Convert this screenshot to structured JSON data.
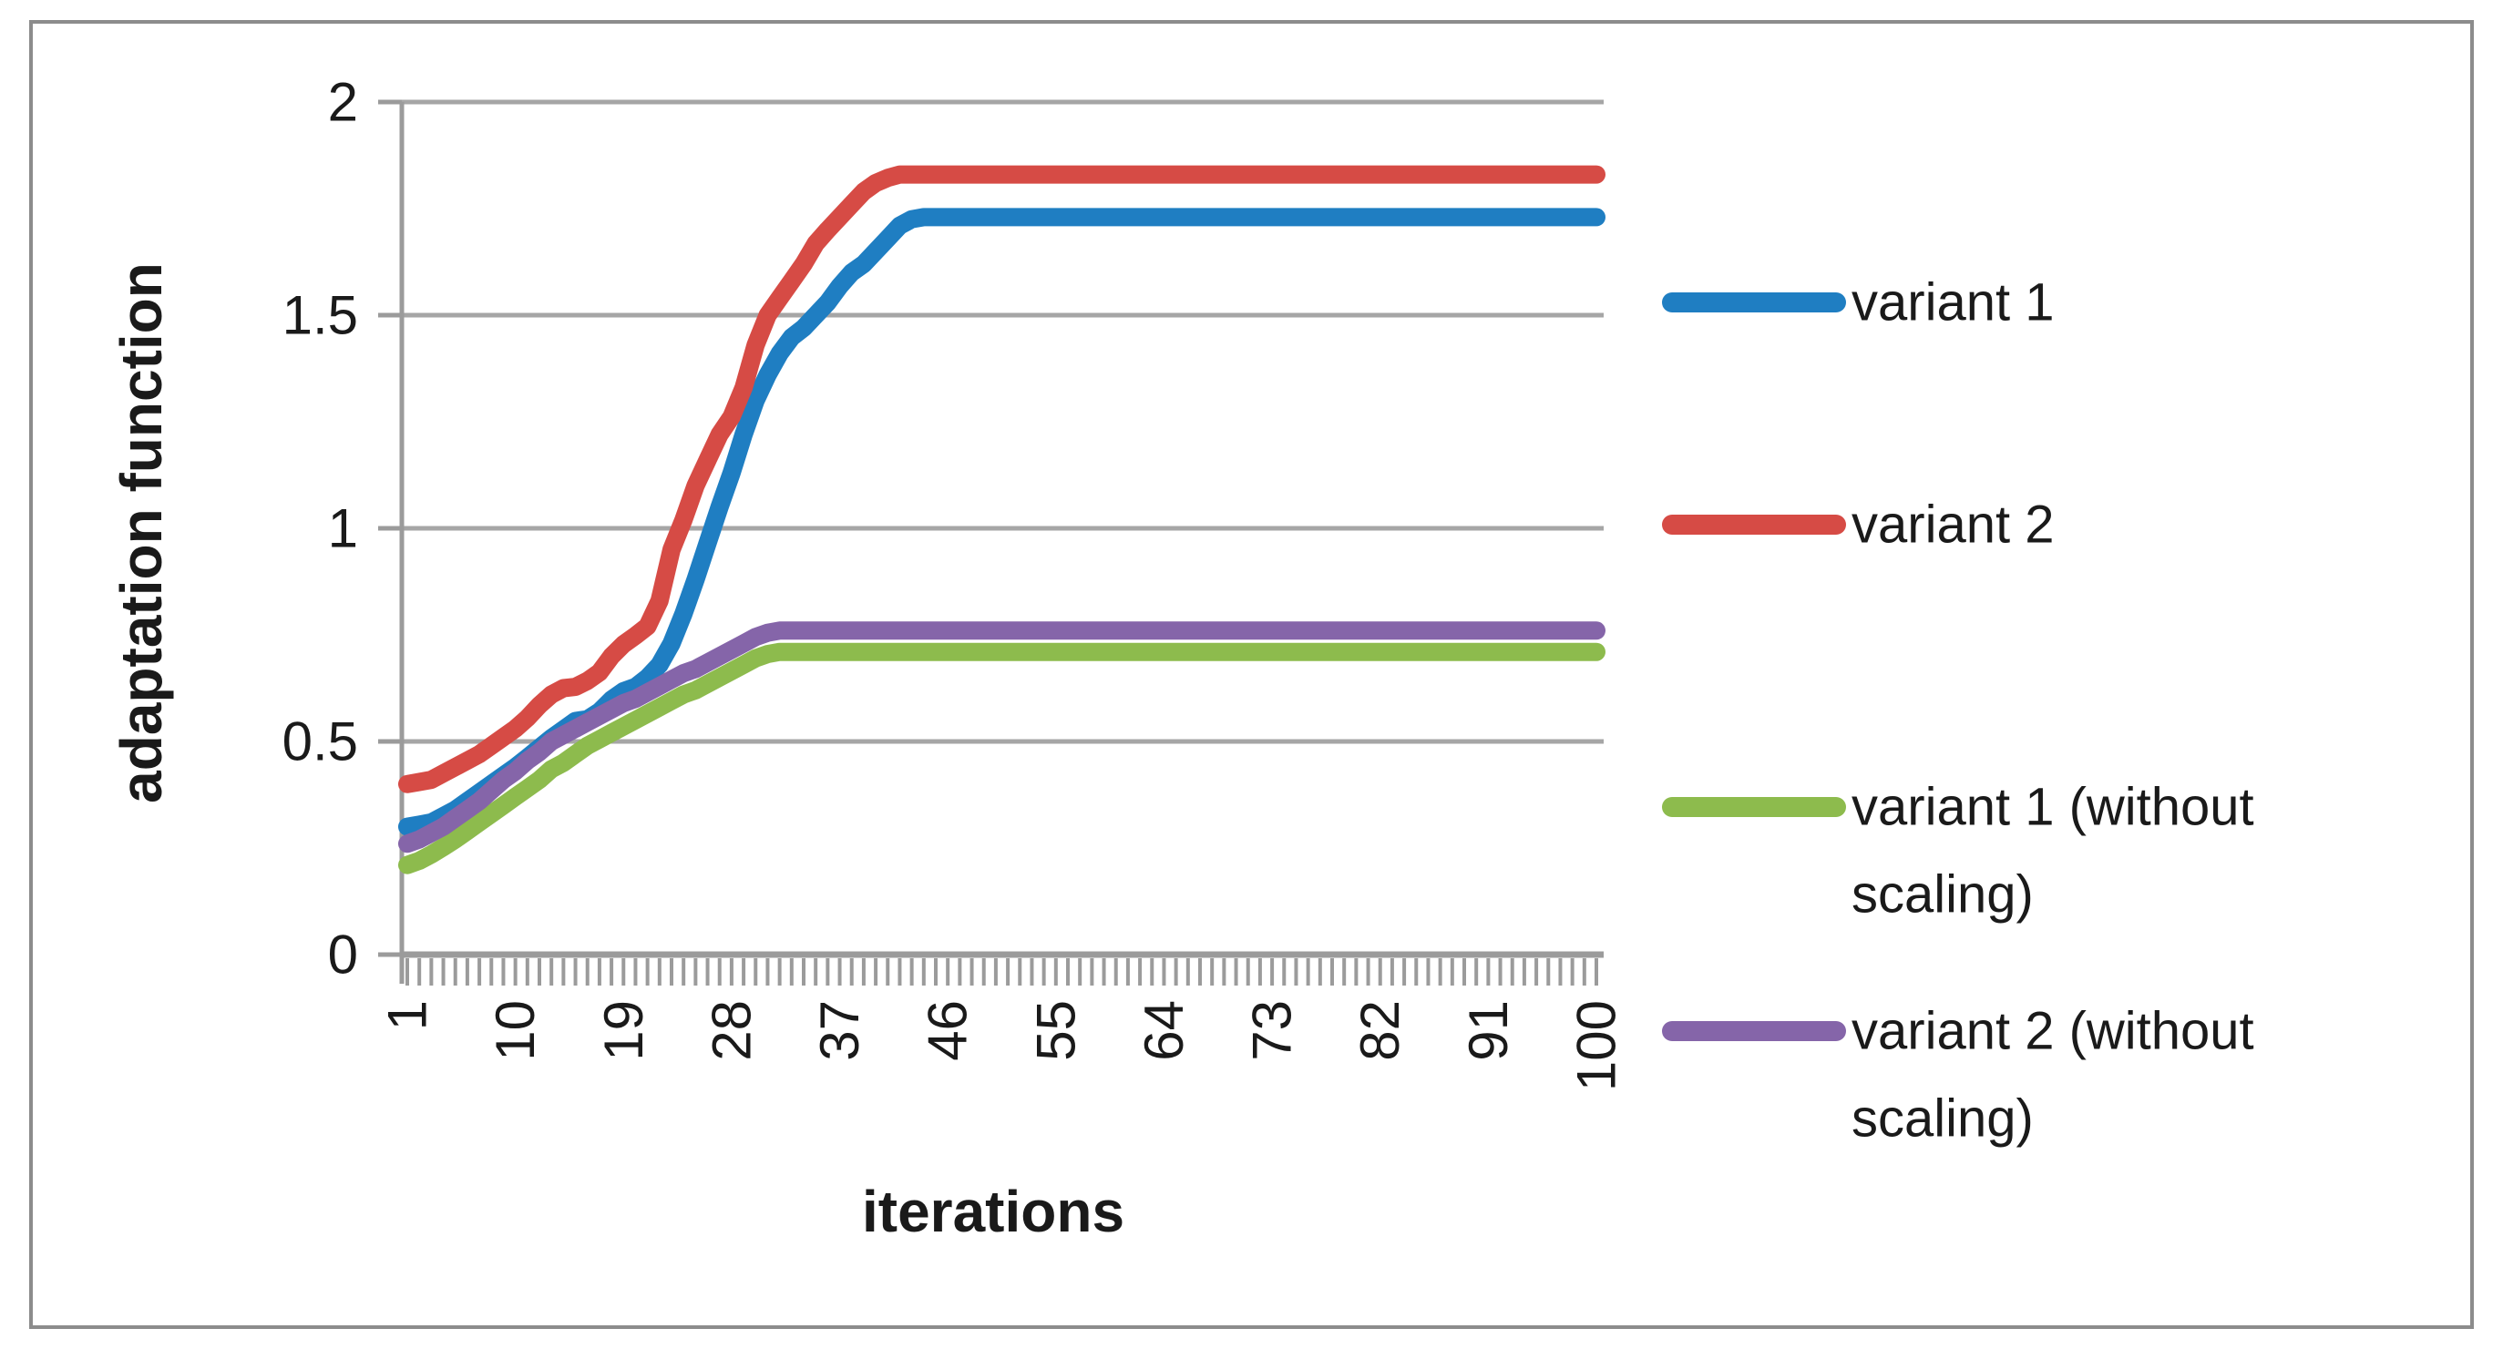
{
  "figure": {
    "background": "#ffffff",
    "border_color": "#8c8c8c",
    "gridline_color": "#a6a6a6",
    "axis_color": "#9b9b9b",
    "text_color": "#1a1a1a"
  },
  "chart_data": {
    "type": "line",
    "title": "",
    "xlabel": "iterations",
    "ylabel": "adaptation function",
    "xlim": [
      1,
      100
    ],
    "ylim": [
      0,
      2
    ],
    "grid": "horizontal",
    "legend_position": "right",
    "x_tick_labels": [
      "1",
      "10",
      "19",
      "28",
      "37",
      "46",
      "55",
      "64",
      "73",
      "82",
      "91",
      "100"
    ],
    "x_tick_values": [
      1,
      10,
      19,
      28,
      37,
      46,
      55,
      64,
      73,
      82,
      91,
      100
    ],
    "x_minor_tick_every": 1,
    "y_tick_labels": [
      "2",
      "1.5",
      "1",
      "0.5",
      "0"
    ],
    "y_tick_values": [
      2,
      1.5,
      1,
      0.5,
      0
    ],
    "x": {
      "start": 1,
      "step": 1,
      "count": 100
    },
    "series": [
      {
        "name": "variant 1",
        "legend_lines": [
          "variant 1"
        ],
        "color": "#1f7ec2",
        "values": [
          0.3,
          0.305,
          0.31,
          0.325,
          0.34,
          0.36,
          0.38,
          0.4,
          0.42,
          0.44,
          0.462,
          0.485,
          0.508,
          0.528,
          0.548,
          0.552,
          0.57,
          0.598,
          0.618,
          0.628,
          0.65,
          0.68,
          0.73,
          0.8,
          0.88,
          0.965,
          1.05,
          1.13,
          1.22,
          1.3,
          1.36,
          1.41,
          1.448,
          1.47,
          1.5,
          1.53,
          1.568,
          1.6,
          1.62,
          1.65,
          1.68,
          1.71,
          1.725,
          1.73,
          1.73,
          1.73,
          1.73,
          1.73,
          1.73,
          1.73,
          1.73,
          1.73,
          1.73,
          1.73,
          1.73,
          1.73,
          1.73,
          1.73,
          1.73,
          1.73,
          1.73,
          1.73,
          1.73,
          1.73,
          1.73,
          1.73,
          1.73,
          1.73,
          1.73,
          1.73,
          1.73,
          1.73,
          1.73,
          1.73,
          1.73,
          1.73,
          1.73,
          1.73,
          1.73,
          1.73,
          1.73,
          1.73,
          1.73,
          1.73,
          1.73,
          1.73,
          1.73,
          1.73,
          1.73,
          1.73,
          1.73,
          1.73,
          1.73,
          1.73,
          1.73,
          1.73,
          1.73,
          1.73,
          1.73,
          1.73
        ]
      },
      {
        "name": "variant 2",
        "legend_lines": [
          "variant 2"
        ],
        "color": "#d64b45",
        "values": [
          0.4,
          0.405,
          0.41,
          0.425,
          0.44,
          0.455,
          0.47,
          0.49,
          0.51,
          0.53,
          0.555,
          0.585,
          0.61,
          0.625,
          0.628,
          0.642,
          0.662,
          0.7,
          0.728,
          0.748,
          0.77,
          0.83,
          0.95,
          1.02,
          1.1,
          1.16,
          1.22,
          1.262,
          1.33,
          1.43,
          1.5,
          1.54,
          1.58,
          1.62,
          1.668,
          1.7,
          1.73,
          1.76,
          1.79,
          1.81,
          1.822,
          1.83,
          1.83,
          1.83,
          1.83,
          1.83,
          1.83,
          1.83,
          1.83,
          1.83,
          1.83,
          1.83,
          1.83,
          1.83,
          1.83,
          1.83,
          1.83,
          1.83,
          1.83,
          1.83,
          1.83,
          1.83,
          1.83,
          1.83,
          1.83,
          1.83,
          1.83,
          1.83,
          1.83,
          1.83,
          1.83,
          1.83,
          1.83,
          1.83,
          1.83,
          1.83,
          1.83,
          1.83,
          1.83,
          1.83,
          1.83,
          1.83,
          1.83,
          1.83,
          1.83,
          1.83,
          1.83,
          1.83,
          1.83,
          1.83,
          1.83,
          1.83,
          1.83,
          1.83,
          1.83,
          1.83,
          1.83,
          1.83,
          1.83,
          1.83
        ]
      },
      {
        "name": "variant 1 (without scaling)",
        "legend_lines": [
          "variant 1 (without",
          "scaling)"
        ],
        "color": "#8dbb4d",
        "values": [
          0.21,
          0.22,
          0.235,
          0.252,
          0.27,
          0.29,
          0.31,
          0.33,
          0.35,
          0.37,
          0.39,
          0.41,
          0.435,
          0.45,
          0.47,
          0.49,
          0.505,
          0.52,
          0.535,
          0.55,
          0.565,
          0.58,
          0.595,
          0.61,
          0.62,
          0.635,
          0.65,
          0.665,
          0.68,
          0.695,
          0.705,
          0.71,
          0.71,
          0.71,
          0.71,
          0.71,
          0.71,
          0.71,
          0.71,
          0.71,
          0.71,
          0.71,
          0.71,
          0.71,
          0.71,
          0.71,
          0.71,
          0.71,
          0.71,
          0.71,
          0.71,
          0.71,
          0.71,
          0.71,
          0.71,
          0.71,
          0.71,
          0.71,
          0.71,
          0.71,
          0.71,
          0.71,
          0.71,
          0.71,
          0.71,
          0.71,
          0.71,
          0.71,
          0.71,
          0.71,
          0.71,
          0.71,
          0.71,
          0.71,
          0.71,
          0.71,
          0.71,
          0.71,
          0.71,
          0.71,
          0.71,
          0.71,
          0.71,
          0.71,
          0.71,
          0.71,
          0.71,
          0.71,
          0.71,
          0.71,
          0.71,
          0.71,
          0.71,
          0.71,
          0.71,
          0.71,
          0.71,
          0.71,
          0.71,
          0.71
        ]
      },
      {
        "name": "variant 2 (without scaling)",
        "legend_lines": [
          "variant 2 (without",
          "scaling)"
        ],
        "color": "#8565a9",
        "values": [
          0.26,
          0.27,
          0.285,
          0.3,
          0.32,
          0.34,
          0.36,
          0.385,
          0.41,
          0.43,
          0.455,
          0.475,
          0.5,
          0.515,
          0.53,
          0.545,
          0.56,
          0.575,
          0.59,
          0.6,
          0.615,
          0.63,
          0.645,
          0.66,
          0.67,
          0.685,
          0.7,
          0.715,
          0.73,
          0.745,
          0.755,
          0.76,
          0.76,
          0.76,
          0.76,
          0.76,
          0.76,
          0.76,
          0.76,
          0.76,
          0.76,
          0.76,
          0.76,
          0.76,
          0.76,
          0.76,
          0.76,
          0.76,
          0.76,
          0.76,
          0.76,
          0.76,
          0.76,
          0.76,
          0.76,
          0.76,
          0.76,
          0.76,
          0.76,
          0.76,
          0.76,
          0.76,
          0.76,
          0.76,
          0.76,
          0.76,
          0.76,
          0.76,
          0.76,
          0.76,
          0.76,
          0.76,
          0.76,
          0.76,
          0.76,
          0.76,
          0.76,
          0.76,
          0.76,
          0.76,
          0.76,
          0.76,
          0.76,
          0.76,
          0.76,
          0.76,
          0.76,
          0.76,
          0.76,
          0.76,
          0.76,
          0.76,
          0.76,
          0.76,
          0.76,
          0.76,
          0.76,
          0.76,
          0.76,
          0.76
        ]
      }
    ]
  }
}
